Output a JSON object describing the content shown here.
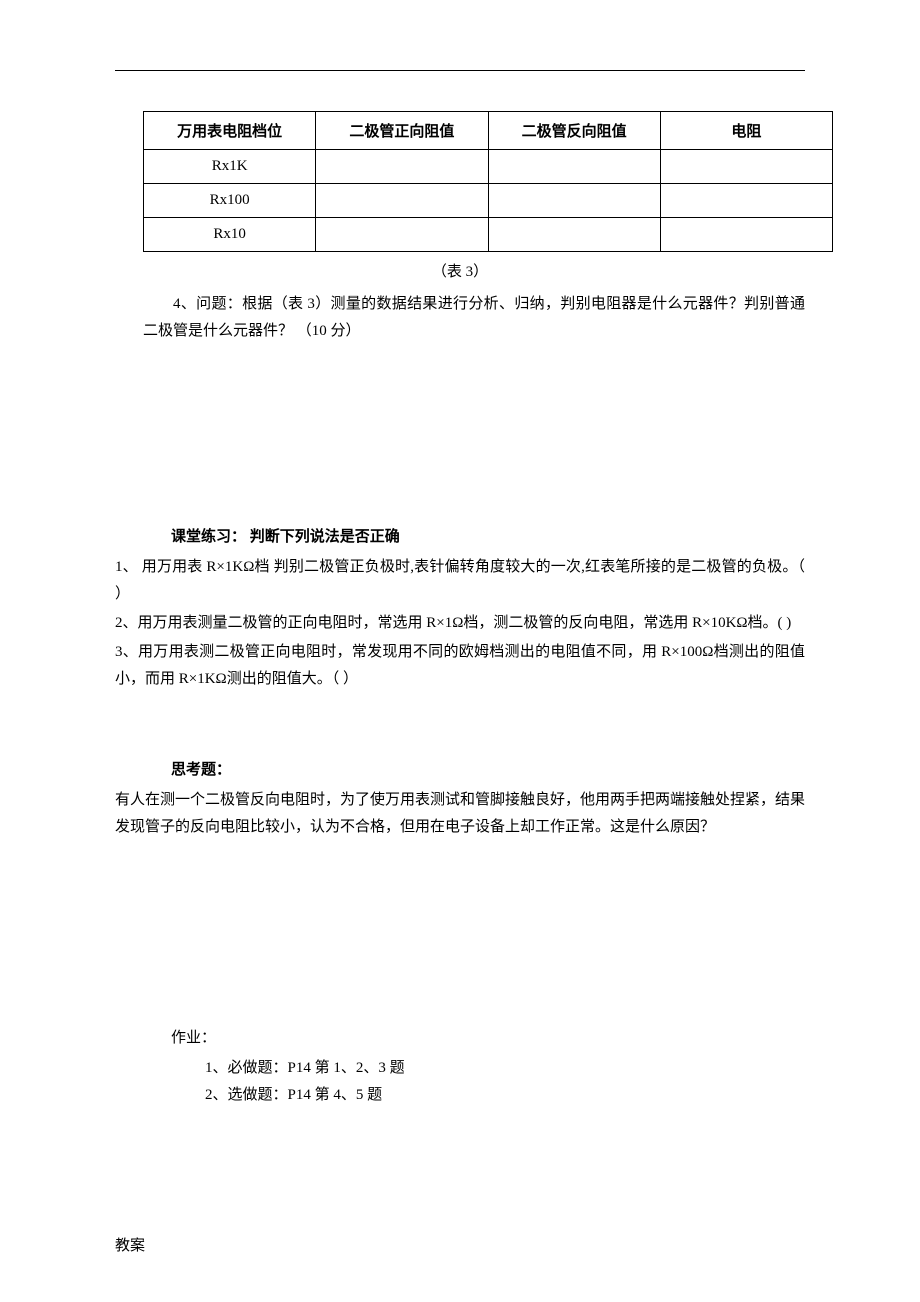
{
  "table": {
    "headers": [
      "万用表电阻档位",
      "二极管正向阻值",
      "二极管反向阻值",
      "电阻"
    ],
    "rows": [
      [
        "Rx1K",
        "",
        "",
        ""
      ],
      [
        "Rx100",
        "",
        "",
        ""
      ],
      [
        "Rx10",
        "",
        "",
        ""
      ]
    ],
    "caption": "（表 3）"
  },
  "question4": {
    "text": "4、问题：根据（表 3）测量的数据结果进行分析、归纳，判别电阻器是什么元器件？判别普通二极管是什么元器件？ （10 分）"
  },
  "practice": {
    "title": "课堂练习：  判断下列说法是否正确",
    "items": [
      "1、  用万用表 R×1KΩ档  判别二极管正负极时,表针偏转角度较大的一次,红表笔所接的是二极管的负极。（         ）",
      "2、用万用表测量二极管的正向电阻时，常选用 R×1Ω档，测二极管的反向电阻，常选用 R×10KΩ档。(          )",
      "3、用万用表测二极管正向电阻时，常发现用不同的欧姆档测出的电阻值不同，用 R×100Ω档测出的阻值小，而用 R×1KΩ测出的阻值大。（         ）"
    ]
  },
  "thinking": {
    "title": "思考题：",
    "body": "有人在测一个二极管反向电阻时，为了使万用表测试和管脚接触良好，他用两手把两端接触处捏紧，结果发现管子的反向电阻比较小，认为不合格，但用在电子设备上却工作正常。这是什么原因？"
  },
  "homework": {
    "title": "作业：",
    "items": [
      "1、必做题：P14   第 1、2、3 题",
      "2、选做题：P14   第 4、5 题"
    ]
  },
  "footer": "教案",
  "colors": {
    "background": "#ffffff",
    "text": "#000000",
    "border": "#000000"
  },
  "typography": {
    "base_font_size": 15,
    "line_height": 1.8,
    "font_family": "SimSun"
  }
}
